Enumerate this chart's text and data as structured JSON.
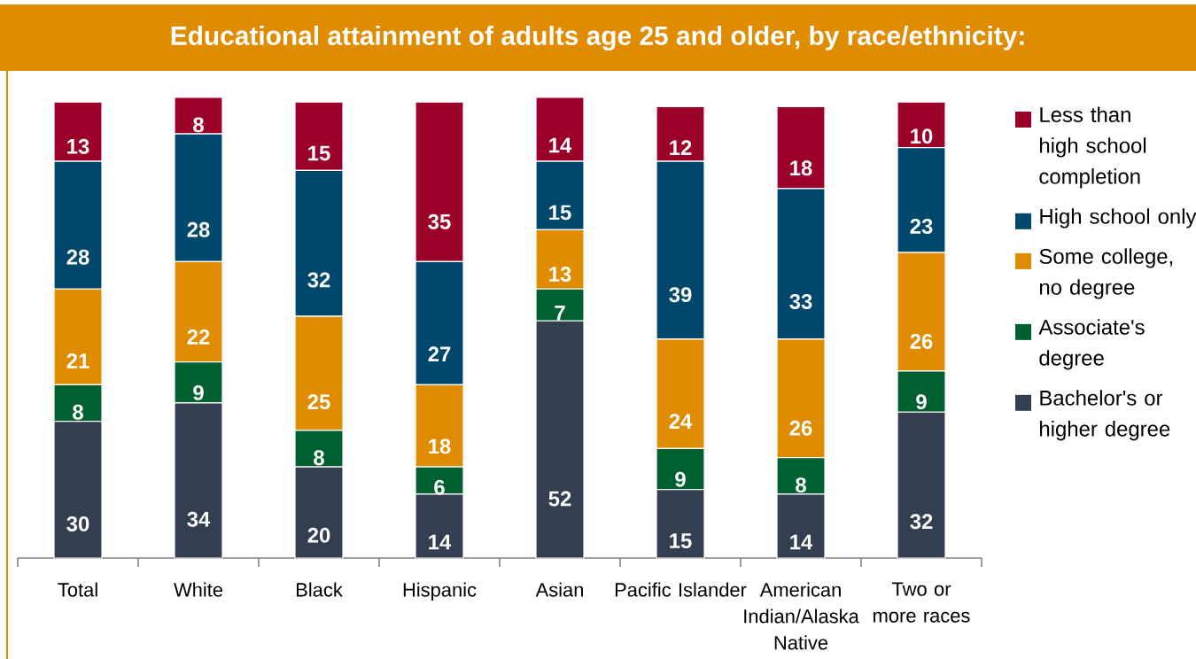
{
  "chart_data": {
    "type": "bar",
    "stacked": true,
    "title": "Educational attainment of adults age 25 and older, by race/ethnicity:",
    "categories": [
      "Total",
      "White",
      "Black",
      "Hispanic",
      "Asian",
      "Pacific Islander",
      "American Indian/Alaska Native",
      "Two or more races"
    ],
    "series": [
      {
        "name": "Bachelor's or higher degree",
        "color": "#333f50",
        "values": [
          30,
          34,
          20,
          14,
          52,
          15,
          14,
          32
        ]
      },
      {
        "name": "Associate's degree",
        "color": "#00602f",
        "values": [
          8,
          9,
          8,
          6,
          7,
          9,
          8,
          9
        ]
      },
      {
        "name": "Some college, no degree",
        "color": "#e08c00",
        "values": [
          21,
          22,
          25,
          18,
          13,
          24,
          26,
          26
        ]
      },
      {
        "name": "High school only",
        "color": "#00486b",
        "values": [
          28,
          28,
          32,
          27,
          15,
          39,
          33,
          23
        ]
      },
      {
        "name": "Less than high school completion",
        "color": "#9b0029",
        "values": [
          13,
          8,
          15,
          35,
          14,
          12,
          18,
          10
        ]
      }
    ],
    "data_labels": true,
    "legend": "right"
  }
}
